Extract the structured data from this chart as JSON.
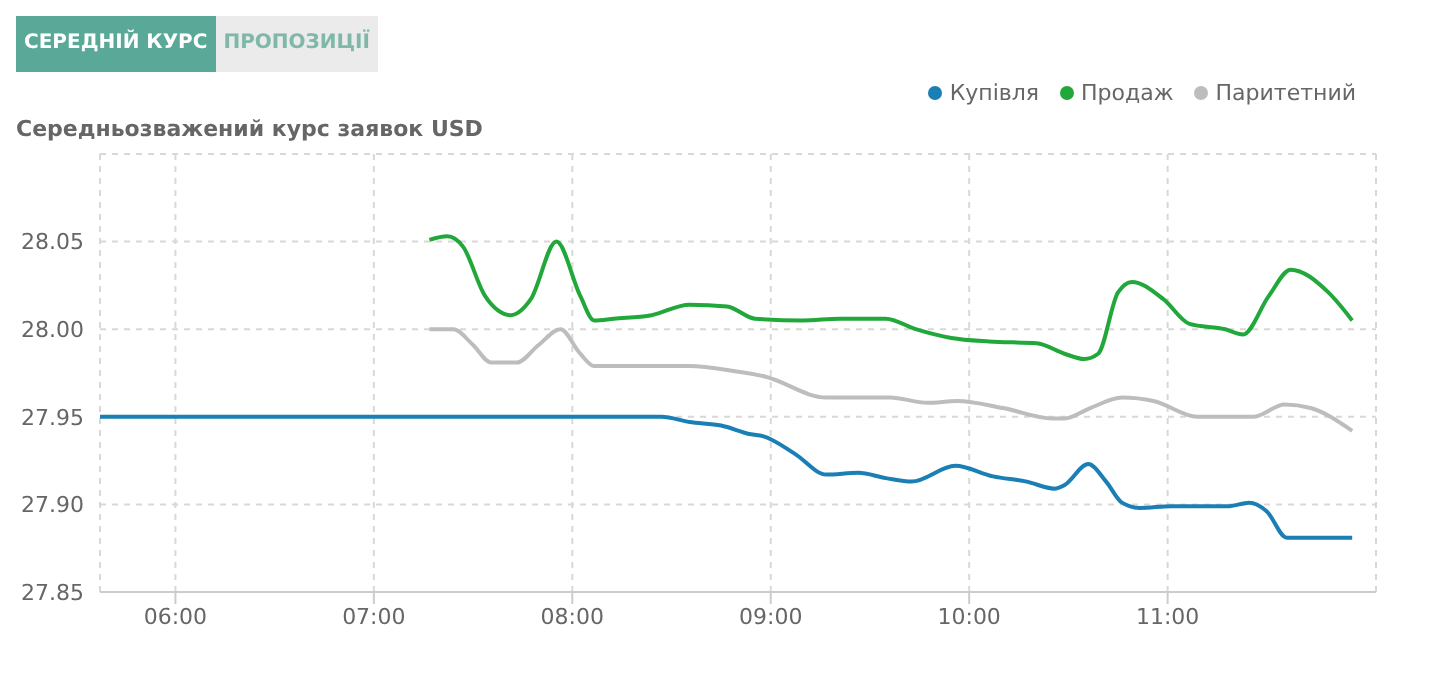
{
  "chart_data": {
    "type": "line",
    "title": "Середньозважений курс заявок USD",
    "annotations": [
      "СЕРЕДНІЙ КУРС",
      "ПРОПОЗИЦІЇ"
    ],
    "xlim": [
      5.62,
      12.05
    ],
    "xticks": [
      {
        "value": 6,
        "label": "06:00"
      },
      {
        "value": 7,
        "label": "07:00"
      },
      {
        "value": 8,
        "label": "08:00"
      },
      {
        "value": 9,
        "label": "09:00"
      },
      {
        "value": 10,
        "label": "10:00"
      },
      {
        "value": 11,
        "label": "11:00"
      }
    ],
    "ylim": [
      27.85,
      28.1
    ],
    "yticks": [
      {
        "value": 27.85,
        "label": "27.85"
      },
      {
        "value": 27.9,
        "label": "27.90"
      },
      {
        "value": 27.95,
        "label": "27.95"
      },
      {
        "value": 28.0,
        "label": "28.00"
      },
      {
        "value": 28.05,
        "label": "28.05"
      }
    ],
    "grid": true,
    "legend": "top right",
    "marker": "none",
    "line_style": "solid",
    "series": [
      {
        "name": "Купівля",
        "color": "#1a7fb5",
        "x": [
          5.62,
          8.45,
          8.59,
          8.75,
          8.9,
          8.96,
          9.12,
          9.28,
          9.44,
          9.58,
          9.71,
          9.93,
          10.12,
          10.29,
          10.43,
          10.48,
          10.6,
          10.69,
          10.77,
          10.86,
          11.02,
          11.31,
          11.41,
          11.5,
          11.6,
          11.74,
          11.93
        ],
        "values": [
          27.95,
          27.95,
          27.947,
          27.945,
          27.94,
          27.939,
          27.929,
          27.917,
          27.918,
          27.915,
          27.913,
          27.922,
          27.916,
          27.913,
          27.909,
          27.911,
          27.923,
          27.913,
          27.901,
          27.898,
          27.899,
          27.899,
          27.901,
          27.896,
          27.881,
          27.881,
          27.881
        ]
      },
      {
        "name": "Продаж",
        "color": "#22a83a",
        "x": [
          7.28,
          7.37,
          7.45,
          7.56,
          7.69,
          7.79,
          7.92,
          8.04,
          8.11,
          8.21,
          8.4,
          8.59,
          8.78,
          8.92,
          9.16,
          9.35,
          9.58,
          9.73,
          9.91,
          10.1,
          10.34,
          10.48,
          10.58,
          10.65,
          10.75,
          10.82,
          10.98,
          11.11,
          11.29,
          11.38,
          11.51,
          11.62,
          11.81,
          11.93
        ],
        "values": [
          28.051,
          28.053,
          28.047,
          28.019,
          28.008,
          28.017,
          28.05,
          28.019,
          28.005,
          28.006,
          28.008,
          28.014,
          28.013,
          28.006,
          28.005,
          28.006,
          28.006,
          28.0,
          27.995,
          27.993,
          27.992,
          27.986,
          27.983,
          27.986,
          28.021,
          28.027,
          28.017,
          28.003,
          28.0,
          27.997,
          28.019,
          28.034,
          28.021,
          28.005
        ]
      },
      {
        "name": "Паритетний",
        "color": "#bdbdbd",
        "x": [
          7.28,
          7.4,
          7.5,
          7.59,
          7.72,
          7.83,
          7.94,
          8.04,
          8.11,
          8.26,
          8.59,
          8.82,
          8.97,
          9.28,
          9.6,
          9.79,
          9.94,
          10.17,
          10.42,
          10.48,
          10.61,
          10.77,
          10.93,
          11.15,
          11.43,
          11.59,
          11.72,
          11.93
        ],
        "values": [
          28.0,
          28.0,
          27.991,
          27.981,
          27.981,
          27.991,
          28.0,
          27.986,
          27.979,
          27.979,
          27.979,
          27.976,
          27.973,
          27.961,
          27.961,
          27.958,
          27.959,
          27.955,
          27.949,
          27.949,
          27.955,
          27.961,
          27.959,
          27.95,
          27.95,
          27.957,
          27.955,
          27.942
        ]
      }
    ]
  }
}
